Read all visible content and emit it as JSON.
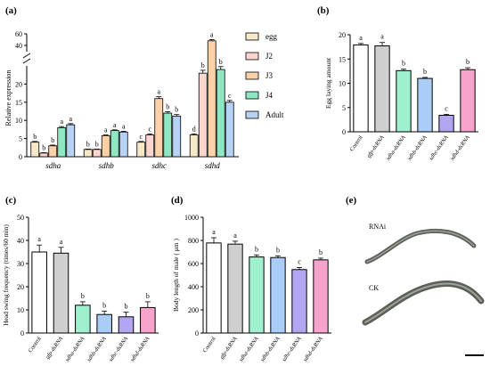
{
  "panels": {
    "a": {
      "label": "(a)"
    },
    "b": {
      "label": "(b)"
    },
    "c": {
      "label": "(c)"
    },
    "d": {
      "label": "(d)"
    },
    "e": {
      "label": "(e)",
      "rnai_label": "RNAi",
      "ck_label": "CK"
    }
  },
  "colors": {
    "egg": "#f6e9c8",
    "J2": "#fbd6cf",
    "J3": "#fbd2a8",
    "J4": "#8fe6c2",
    "Adult": "#b6d3f5",
    "control": "#ffffff",
    "gfp": "#cfcfcf",
    "sdha": "#9ff0cf",
    "sdhb": "#a9cdf6",
    "sdhc": "#b2a6f3",
    "sdhd": "#f7a3cc"
  },
  "chart_data": [
    {
      "panel": "a",
      "type": "bar",
      "ylabel": "Relative expression",
      "ylim": [
        0,
        60
      ],
      "y_axis_break": [
        25,
        40
      ],
      "yticks": [
        0,
        5,
        10,
        15,
        20,
        40,
        60
      ],
      "categories": [
        "sdha",
        "sdhb",
        "sdhc",
        "sdhd"
      ],
      "legend_position": "right",
      "series": [
        {
          "name": "egg",
          "values": [
            4.0,
            2.0,
            4.0,
            6.0
          ],
          "errors": [
            0.2,
            0.1,
            0.2,
            0.3
          ],
          "letters": [
            "b",
            "b",
            "c",
            "d"
          ]
        },
        {
          "name": "J2",
          "values": [
            1.0,
            2.0,
            6.0,
            23.0
          ],
          "errors": [
            0.1,
            0.1,
            0.3,
            0.8
          ],
          "letters": [
            "b",
            "b",
            "c",
            "b"
          ]
        },
        {
          "name": "J3",
          "values": [
            3.0,
            5.8,
            16.0,
            48.0
          ],
          "errors": [
            0.2,
            0.2,
            0.5,
            2.0
          ],
          "letters": [
            "b",
            "a",
            "a",
            "a"
          ]
        },
        {
          "name": "J4",
          "values": [
            8.0,
            7.2,
            12.0,
            24.0
          ],
          "errors": [
            0.3,
            0.2,
            0.4,
            0.8
          ],
          "letters": [
            "a",
            "a",
            "b",
            "b"
          ]
        },
        {
          "name": "Adult",
          "values": [
            8.8,
            6.8,
            11.2,
            15.0
          ],
          "errors": [
            0.3,
            0.2,
            0.4,
            0.5
          ],
          "letters": [
            "a",
            "a",
            "b",
            "c"
          ]
        }
      ]
    },
    {
      "panel": "b",
      "type": "bar",
      "ylabel": "Egg laying amount",
      "ylim": [
        0,
        20
      ],
      "yticks": [
        0,
        5,
        10,
        15,
        20
      ],
      "categories": [
        "Control",
        "gfp-dsRNA",
        "sdha-dsRNA",
        "sdhb-dsRNA",
        "sdhc-dsRNA",
        "sdhd-dsRNA"
      ],
      "values": [
        17.9,
        17.7,
        12.6,
        11.0,
        3.4,
        12.8
      ],
      "errors": [
        0.3,
        0.7,
        0.3,
        0.2,
        0.2,
        0.4
      ],
      "letters": [
        "a",
        "a",
        "b",
        "b",
        "c",
        "b"
      ]
    },
    {
      "panel": "c",
      "type": "bar",
      "ylabel": "Head swing frequency (times/60 min)",
      "ylim": [
        0,
        50
      ],
      "yticks": [
        0,
        10,
        20,
        30,
        40,
        50
      ],
      "categories": [
        "Control",
        "gfp-dsRNA",
        "sdha-dsRNA",
        "sdhb-dsRNA",
        "sdhc-dsRNA",
        "sdhd-dsRNA"
      ],
      "values": [
        35,
        34.5,
        12,
        8,
        7,
        11
      ],
      "errors": [
        3.0,
        2.5,
        1.5,
        1.5,
        2.0,
        2.5
      ],
      "letters": [
        "a",
        "a",
        "b",
        "b",
        "b",
        "b"
      ]
    },
    {
      "panel": "d",
      "type": "bar",
      "ylabel": "Body length of male ( μm )",
      "ylim": [
        0,
        1000
      ],
      "yticks": [
        0,
        200,
        400,
        600,
        800,
        1000
      ],
      "categories": [
        "Control",
        "gfp-dsRNA",
        "sdha-dsRNA",
        "sdhb-dsRNA",
        "sdhc-dsRNA",
        "sdhd-dsRNA"
      ],
      "values": [
        778,
        768,
        657,
        652,
        548,
        632
      ],
      "errors": [
        45,
        25,
        18,
        15,
        18,
        15
      ],
      "letters": [
        "a",
        "a",
        "b",
        "b",
        "c",
        "b"
      ]
    }
  ]
}
